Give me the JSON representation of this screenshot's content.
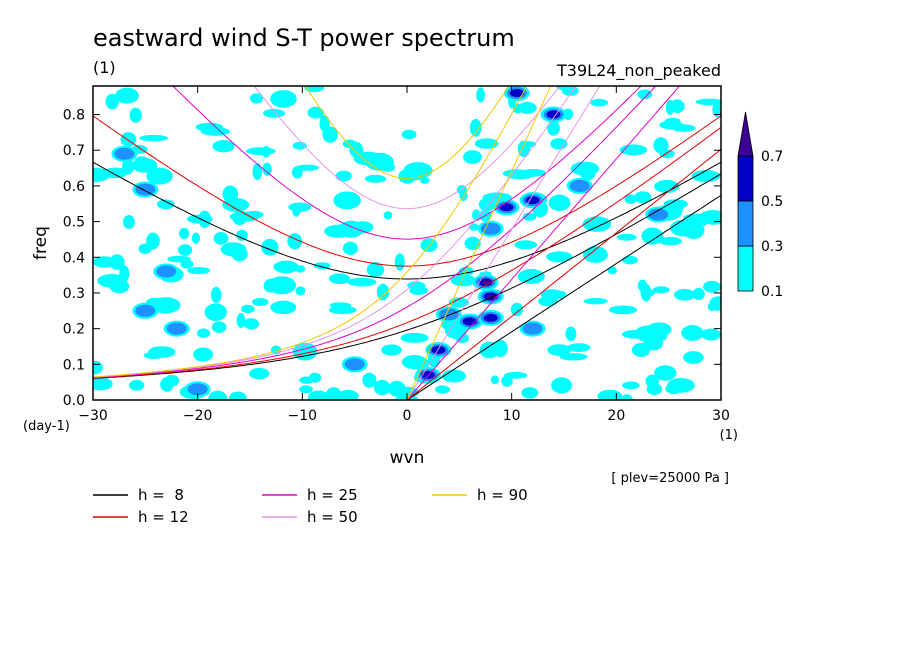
{
  "chart_data": {
    "type": "heatmap",
    "title": "eastward wind S-T power spectrum",
    "title_units": "(1)",
    "run_label": "T39L24_non_peaked",
    "xlabel": "wvn",
    "xunits": "(1)",
    "ylabel": "freq",
    "yunits": "(day-1)",
    "level_note": "[ plev=25000 Pa ]",
    "xlim": [
      -30,
      30
    ],
    "ylim": [
      0,
      0.88
    ],
    "xticks": [
      -30,
      -20,
      -10,
      0,
      10,
      20,
      30
    ],
    "yticks": [
      0.0,
      0.1,
      0.2,
      0.3,
      0.4,
      0.5,
      0.6,
      0.7,
      0.8
    ],
    "colorbar": {
      "levels": [
        "0.1",
        "0.3",
        "0.5",
        "0.7"
      ],
      "colors": [
        "#00ffff",
        "#1e90ff",
        "#0000c8",
        "#3c0096"
      ]
    },
    "hot_spots": [
      {
        "x": 7.5,
        "y": 0.33,
        "level": 0.7
      },
      {
        "x": 8.0,
        "y": 0.29,
        "level": 0.7
      },
      {
        "x": 6.0,
        "y": 0.22,
        "level": 0.5
      },
      {
        "x": 8.0,
        "y": 0.23,
        "level": 0.5
      },
      {
        "x": 3.0,
        "y": 0.14,
        "level": 0.5
      },
      {
        "x": 2.0,
        "y": 0.07,
        "level": 0.5
      },
      {
        "x": 14.0,
        "y": 0.8,
        "level": 0.5
      },
      {
        "x": 9.5,
        "y": 0.54,
        "level": 0.5
      },
      {
        "x": 12.0,
        "y": 0.56,
        "level": 0.5
      },
      {
        "x": 10.5,
        "y": 0.86,
        "level": 0.5
      },
      {
        "x": -25.0,
        "y": 0.59,
        "level": 0.3
      },
      {
        "x": -27.0,
        "y": 0.69,
        "level": 0.3
      },
      {
        "x": -23.0,
        "y": 0.36,
        "level": 0.3
      },
      {
        "x": -25.0,
        "y": 0.25,
        "level": 0.3
      },
      {
        "x": -22.0,
        "y": 0.2,
        "level": 0.3
      },
      {
        "x": -20.0,
        "y": 0.03,
        "level": 0.3
      },
      {
        "x": 8.0,
        "y": 0.48,
        "level": 0.3
      },
      {
        "x": 4.0,
        "y": 0.24,
        "level": 0.3
      },
      {
        "x": 16.5,
        "y": 0.6,
        "level": 0.3
      },
      {
        "x": 24.0,
        "y": 0.52,
        "level": 0.3
      },
      {
        "x": -5.0,
        "y": 0.1,
        "level": 0.3
      },
      {
        "x": 12.0,
        "y": 0.2,
        "level": 0.3
      }
    ],
    "series": [
      {
        "name": "h =  8",
        "h": 8,
        "color": "#000000"
      },
      {
        "name": "h = 12",
        "h": 12,
        "color": "#e60000"
      },
      {
        "name": "h = 25",
        "h": 25,
        "color": "#e600c8"
      },
      {
        "name": "h = 50",
        "h": 50,
        "color": "#e696e6"
      },
      {
        "name": "h = 90",
        "h": 90,
        "color": "#f0c800"
      }
    ],
    "grid": false,
    "legend_position": "bottom-left"
  }
}
